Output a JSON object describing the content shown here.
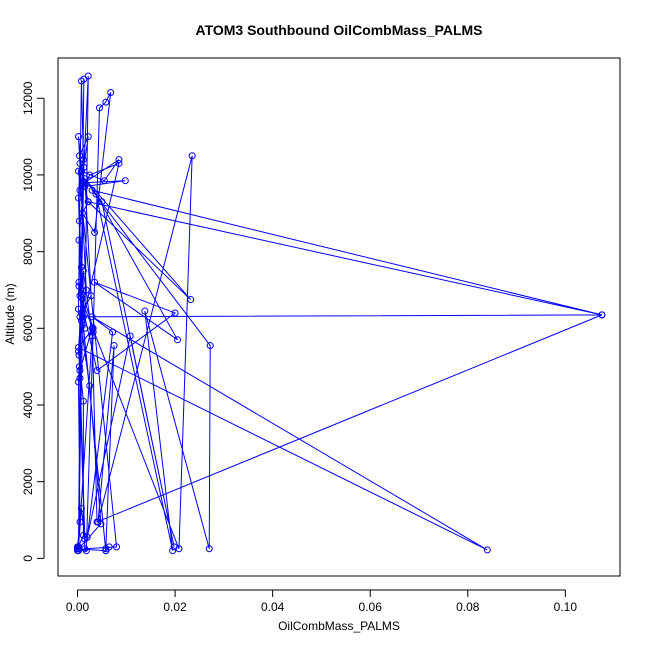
{
  "chart_data": {
    "type": "line",
    "title": "ATOM3 Southbound OilCombMass_PALMS",
    "xlabel": "OilCombMass_PALMS",
    "ylabel": "Altitude (m)",
    "xlim": [
      -0.004,
      0.1112
    ],
    "ylim": [
      -460,
      13050
    ],
    "x_ticks": [
      0.0,
      0.02,
      0.04,
      0.06,
      0.08,
      0.1
    ],
    "x_tick_labels": [
      "0.00",
      "0.02",
      "0.04",
      "0.06",
      "0.08",
      "0.10"
    ],
    "y_ticks": [
      0,
      2000,
      4000,
      6000,
      8000,
      10000,
      12000
    ],
    "y_tick_labels": [
      "0",
      "2000",
      "4000",
      "6000",
      "8000",
      "10000",
      "12000"
    ],
    "grid": false,
    "series": [
      {
        "color": "#0000ff",
        "marker": "open-circle",
        "points": [
          [
            0.0,
            200
          ],
          [
            0.0,
            300
          ],
          [
            0.0005,
            950
          ],
          [
            0.0002,
            4600
          ],
          [
            0.0008,
            6200
          ],
          [
            0.0003,
            8300
          ],
          [
            0.0012,
            9700
          ],
          [
            0.0002,
            11000
          ],
          [
            0.0005,
            10300
          ],
          [
            0.0002,
            9400
          ],
          [
            0.0008,
            6800
          ],
          [
            0.0002,
            5400
          ],
          [
            0.0012,
            4100
          ],
          [
            0.0012,
            600
          ],
          [
            0.0,
            250
          ],
          [
            0.0058,
            200
          ],
          [
            0.0003,
            7100
          ],
          [
            0.0018,
            7000
          ],
          [
            0.0004,
            10500
          ],
          [
            0.0022,
            11000
          ],
          [
            0.0005,
            9600
          ],
          [
            0.0002,
            6500
          ],
          [
            0.0025,
            4500
          ],
          [
            0.0048,
            900
          ],
          [
            0.0002,
            250
          ],
          [
            0.0013,
            12500
          ],
          [
            0.0008,
            7600
          ],
          [
            0.0004,
            5000
          ],
          [
            0.0012,
            10400
          ],
          [
            0.0008,
            12450
          ],
          [
            0.0004,
            8800
          ],
          [
            0.0015,
            6000
          ],
          [
            0.0022,
            12580
          ],
          [
            0.0013,
            10200
          ],
          [
            0.0008,
            6900
          ],
          [
            0.0005,
            4700
          ],
          [
            0.0002,
            250
          ],
          [
            0.0018,
            200
          ],
          [
            0.0032,
            5900
          ],
          [
            0.0045,
            11750
          ],
          [
            0.0058,
            11900
          ],
          [
            0.0068,
            12150
          ],
          [
            0.0035,
            8500
          ],
          [
            0.001,
            9000
          ],
          [
            0.0022,
            9300
          ],
          [
            0.0008,
            10100
          ],
          [
            0.0055,
            9850
          ],
          [
            0.0085,
            10400
          ],
          [
            0.0015,
            9800
          ],
          [
            0.0098,
            9850
          ],
          [
            0.0015,
            9700
          ],
          [
            0.0025,
            10000
          ],
          [
            0.0085,
            10300
          ],
          [
            0.0012,
            6300
          ],
          [
            0.0008,
            6400
          ],
          [
            0.0028,
            6850
          ],
          [
            0.0015,
            9900
          ],
          [
            0.0232,
            6750
          ],
          [
            0.0022,
            9300
          ],
          [
            0.1075,
            6350
          ],
          [
            0.003,
            9600
          ],
          [
            0.0272,
            5550
          ],
          [
            0.027,
            250
          ],
          [
            0.0138,
            6450
          ],
          [
            0.0195,
            200
          ],
          [
            0.0038,
            9500
          ],
          [
            0.0205,
            5700
          ],
          [
            0.0035,
            7200
          ],
          [
            0.02,
            6400
          ],
          [
            0.004,
            4900
          ],
          [
            0.0005,
            6850
          ],
          [
            0.0208,
            250
          ],
          [
            0.0235,
            10500
          ],
          [
            0.0042,
            950
          ],
          [
            0.0075,
            5550
          ],
          [
            0.0058,
            250
          ],
          [
            0.0065,
            300
          ],
          [
            0.0058,
            200
          ],
          [
            0.0003,
            7200
          ],
          [
            0.0032,
            6000
          ],
          [
            0.0002,
            5500
          ],
          [
            0.084,
            220
          ],
          [
            0.003,
            6300
          ],
          [
            0.0072,
            5900
          ],
          [
            0.002,
            550
          ],
          [
            0.0108,
            5800
          ],
          [
            0.0198,
            300
          ],
          [
            0.005,
            9300
          ],
          [
            0.0002,
            10100
          ],
          [
            0.008,
            300
          ],
          [
            0.0015,
            250
          ],
          [
            0.0003,
            5300
          ],
          [
            0.0005,
            6300
          ],
          [
            0.1075,
            6350
          ],
          [
            0.004,
            950
          ],
          [
            0.003,
            6000
          ],
          [
            0.0005,
            4900
          ],
          [
            0.0015,
            500
          ],
          [
            0.0008,
            1300
          ],
          [
            0.0002,
            300
          ],
          [
            0.003,
            5800
          ],
          [
            0.0012,
            7500
          ],
          [
            0.0002,
            200
          ]
        ]
      }
    ]
  }
}
